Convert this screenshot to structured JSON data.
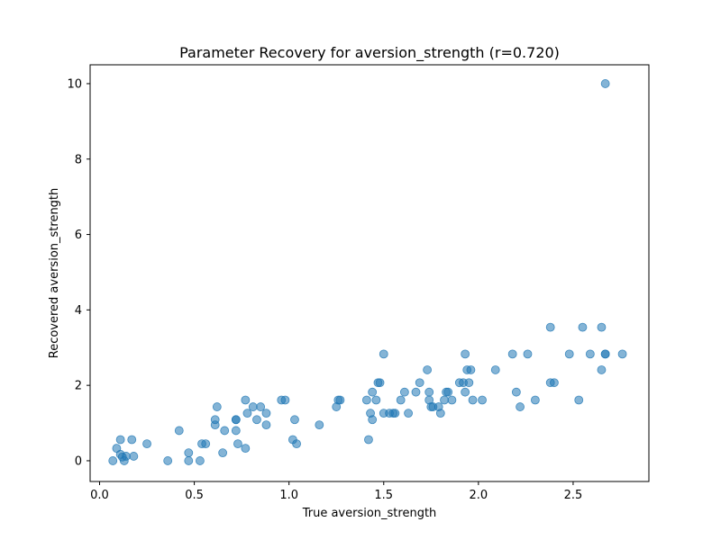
{
  "chart_data": {
    "type": "scatter",
    "title": "Parameter Recovery for aversion_strength (r=0.720)",
    "xlabel": "True aversion_strength",
    "ylabel": "Recovered aversion_strength",
    "xlim": [
      -0.05,
      2.9
    ],
    "ylim": [
      -0.55,
      10.5
    ],
    "xticks": [
      0.0,
      0.5,
      1.0,
      1.5,
      2.0,
      2.5
    ],
    "xtick_labels": [
      "0.0",
      "0.5",
      "1.0",
      "1.5",
      "2.0",
      "2.5"
    ],
    "yticks": [
      0,
      2,
      4,
      6,
      8,
      10
    ],
    "ytick_labels": [
      "0",
      "2",
      "4",
      "6",
      "8",
      "10"
    ],
    "grid": false,
    "marker_color": "#1f77b4",
    "marker_alpha": 0.55,
    "points": [
      [
        0.07,
        0.0
      ],
      [
        0.09,
        0.33
      ],
      [
        0.11,
        0.56
      ],
      [
        0.11,
        0.17
      ],
      [
        0.12,
        0.1
      ],
      [
        0.13,
        0.0
      ],
      [
        0.14,
        0.12
      ],
      [
        0.17,
        0.56
      ],
      [
        0.18,
        0.12
      ],
      [
        0.25,
        0.45
      ],
      [
        0.36,
        0.0
      ],
      [
        0.42,
        0.8
      ],
      [
        0.47,
        0.21
      ],
      [
        0.47,
        0.0
      ],
      [
        0.53,
        0.0
      ],
      [
        0.54,
        0.45
      ],
      [
        0.56,
        0.45
      ],
      [
        0.61,
        1.09
      ],
      [
        0.61,
        0.95
      ],
      [
        0.62,
        1.43
      ],
      [
        0.65,
        0.21
      ],
      [
        0.66,
        0.8
      ],
      [
        0.72,
        1.09
      ],
      [
        0.72,
        1.09
      ],
      [
        0.72,
        0.8
      ],
      [
        0.73,
        0.45
      ],
      [
        0.77,
        0.33
      ],
      [
        0.77,
        1.61
      ],
      [
        0.78,
        1.26
      ],
      [
        0.81,
        1.43
      ],
      [
        0.83,
        1.09
      ],
      [
        0.85,
        1.43
      ],
      [
        0.88,
        1.26
      ],
      [
        0.88,
        0.95
      ],
      [
        0.96,
        1.61
      ],
      [
        0.98,
        1.61
      ],
      [
        1.02,
        0.56
      ],
      [
        1.03,
        1.09
      ],
      [
        1.04,
        0.45
      ],
      [
        1.16,
        0.95
      ],
      [
        1.25,
        1.43
      ],
      [
        1.26,
        1.61
      ],
      [
        1.27,
        1.61
      ],
      [
        1.41,
        1.61
      ],
      [
        1.42,
        0.56
      ],
      [
        1.43,
        1.26
      ],
      [
        1.44,
        1.09
      ],
      [
        1.44,
        1.82
      ],
      [
        1.46,
        1.61
      ],
      [
        1.47,
        2.07
      ],
      [
        1.48,
        2.07
      ],
      [
        1.5,
        2.83
      ],
      [
        1.5,
        1.26
      ],
      [
        1.53,
        1.26
      ],
      [
        1.55,
        1.26
      ],
      [
        1.56,
        1.26
      ],
      [
        1.59,
        1.61
      ],
      [
        1.61,
        1.82
      ],
      [
        1.63,
        1.26
      ],
      [
        1.67,
        1.82
      ],
      [
        1.69,
        2.07
      ],
      [
        1.73,
        2.41
      ],
      [
        1.74,
        1.82
      ],
      [
        1.74,
        1.61
      ],
      [
        1.75,
        1.43
      ],
      [
        1.76,
        1.43
      ],
      [
        1.79,
        1.43
      ],
      [
        1.8,
        1.26
      ],
      [
        1.82,
        1.61
      ],
      [
        1.83,
        1.82
      ],
      [
        1.84,
        1.82
      ],
      [
        1.86,
        1.61
      ],
      [
        1.9,
        2.07
      ],
      [
        1.92,
        2.07
      ],
      [
        1.93,
        2.83
      ],
      [
        1.93,
        1.82
      ],
      [
        1.94,
        2.41
      ],
      [
        1.95,
        2.07
      ],
      [
        1.96,
        2.41
      ],
      [
        1.97,
        1.61
      ],
      [
        2.02,
        1.61
      ],
      [
        2.09,
        2.41
      ],
      [
        2.18,
        2.83
      ],
      [
        2.2,
        1.82
      ],
      [
        2.22,
        1.43
      ],
      [
        2.26,
        2.83
      ],
      [
        2.3,
        1.61
      ],
      [
        2.38,
        3.54
      ],
      [
        2.38,
        2.07
      ],
      [
        2.4,
        2.07
      ],
      [
        2.48,
        2.83
      ],
      [
        2.53,
        1.61
      ],
      [
        2.55,
        3.54
      ],
      [
        2.59,
        2.83
      ],
      [
        2.65,
        2.41
      ],
      [
        2.65,
        3.54
      ],
      [
        2.67,
        2.83
      ],
      [
        2.67,
        2.83
      ],
      [
        2.67,
        10.0
      ],
      [
        2.76,
        2.83
      ]
    ]
  }
}
